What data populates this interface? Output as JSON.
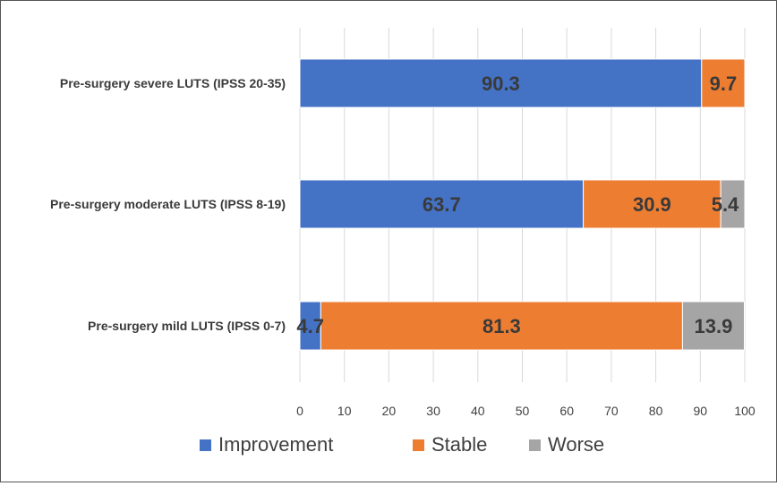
{
  "chart_data": {
    "type": "bar",
    "orientation": "horizontal",
    "stacked": true,
    "title": "",
    "xlabel": "",
    "ylabel": "",
    "xlim": [
      0,
      100
    ],
    "x_ticks": [
      "0",
      "10",
      "20",
      "30",
      "40",
      "50",
      "60",
      "70",
      "80",
      "90",
      "100"
    ],
    "grid": "vertical",
    "legend_position": "bottom",
    "categories": [
      "Pre-surgery severe LUTS (IPSS 20-35)",
      "Pre-surgery moderate LUTS (IPSS 8-19)",
      "Pre-surgery mild LUTS (IPSS 0-7)"
    ],
    "series": [
      {
        "name": "Improvement",
        "color": "#4472C4",
        "values": [
          90.3,
          63.7,
          4.7
        ],
        "labels": [
          "90.3",
          "63.7",
          "4.7"
        ]
      },
      {
        "name": "Stable",
        "color": "#ED7D31",
        "values": [
          9.7,
          30.9,
          81.3
        ],
        "labels": [
          "9.7",
          "30.9",
          "81.3"
        ]
      },
      {
        "name": "Worse",
        "color": "#A5A5A5",
        "values": [
          0,
          5.4,
          13.9
        ],
        "labels": [
          "",
          "5.4",
          "13.9"
        ]
      }
    ]
  }
}
